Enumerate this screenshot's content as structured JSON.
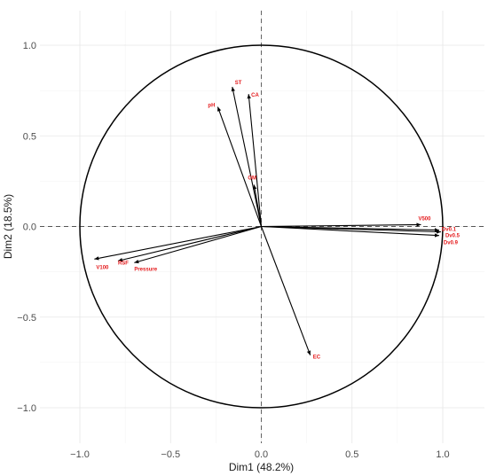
{
  "chart_data": {
    "type": "scatter",
    "subtype": "pca-correlation-circle",
    "title": "",
    "xlabel": "Dim1 (48.2%)",
    "ylabel": "Dim2 (18.5%)",
    "xlim": [
      -1.2,
      1.2
    ],
    "ylim": [
      -1.15,
      1.1
    ],
    "x_ticks": [
      -1.0,
      -0.5,
      0.0,
      0.5,
      1.0
    ],
    "x_tick_labels": [
      "−1.0",
      "−0.5",
      "0.0",
      "0.5",
      "1.0"
    ],
    "y_ticks": [
      -1.0,
      -0.5,
      0.0,
      0.5,
      1.0
    ],
    "y_tick_labels": [
      "−1.0",
      "−0.5",
      "0.0",
      "0.5",
      "1.0"
    ],
    "grid": true,
    "reference_lines": "dashed at x=0 and y=0",
    "unit_circle": true,
    "label_color": "#e41a1c",
    "arrow_color": "#000000",
    "variables": [
      {
        "name": "ST",
        "x": -0.16,
        "y": 0.77
      },
      {
        "name": "CA",
        "x": -0.07,
        "y": 0.73
      },
      {
        "name": "pH",
        "x": -0.24,
        "y": 0.66
      },
      {
        "name": "OM",
        "x": -0.04,
        "y": 0.23
      },
      {
        "name": "V500",
        "x": 0.88,
        "y": 0.01
      },
      {
        "name": "Dv0.1",
        "x": 0.98,
        "y": -0.02
      },
      {
        "name": "Dv0.5",
        "x": 0.99,
        "y": -0.03
      },
      {
        "name": "Dv0.9",
        "x": 0.98,
        "y": -0.05
      },
      {
        "name": "V100",
        "x": -0.92,
        "y": -0.18
      },
      {
        "name": "RSF",
        "x": -0.79,
        "y": -0.19
      },
      {
        "name": "Pressure",
        "x": -0.7,
        "y": -0.2
      },
      {
        "name": "EC",
        "x": 0.27,
        "y": -0.71
      }
    ]
  }
}
